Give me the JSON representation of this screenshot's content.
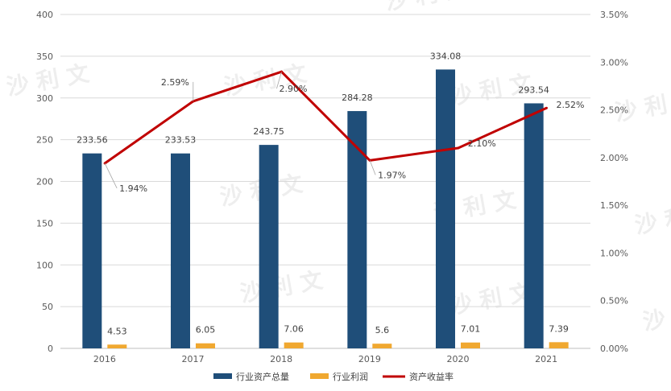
{
  "chart_data": {
    "type": "bar",
    "categories": [
      "2016",
      "2017",
      "2018",
      "2019",
      "2020",
      "2021"
    ],
    "series": [
      {
        "name": "行业资产总量",
        "type": "bar",
        "axis": "left",
        "color": "#1f4e79",
        "values": [
          233.56,
          233.53,
          243.75,
          284.28,
          334.08,
          293.54
        ],
        "labels": [
          "233.56",
          "233.53",
          "243.75",
          "284.28",
          "334.08",
          "293.54"
        ]
      },
      {
        "name": "行业利润",
        "type": "bar",
        "axis": "left",
        "color": "#f0a830",
        "values": [
          4.53,
          6.05,
          7.06,
          5.6,
          7.01,
          7.39
        ],
        "labels": [
          "4.53",
          "6.05",
          "7.06",
          "5.6",
          "7.01",
          "7.39"
        ]
      },
      {
        "name": "资产收益率",
        "type": "line",
        "axis": "right",
        "color": "#c00000",
        "values": [
          1.94,
          2.59,
          2.9,
          1.97,
          2.1,
          2.52
        ],
        "labels": [
          "1.94%",
          "2.59%",
          "2.90%",
          "1.97%",
          "2.10%",
          "2.52%"
        ]
      }
    ],
    "y_left": {
      "ylim": [
        0,
        400
      ],
      "ticks": [
        "0",
        "50",
        "100",
        "150",
        "200",
        "250",
        "300",
        "350",
        "400"
      ]
    },
    "y_right": {
      "ylim": [
        0,
        3.5
      ],
      "ticks": [
        "0.00%",
        "0.50%",
        "1.00%",
        "1.50%",
        "2.00%",
        "2.50%",
        "3.00%",
        "3.50%"
      ]
    },
    "grid": true,
    "legend": "bottom"
  },
  "watermark": {
    "text": "沙 利 文"
  }
}
